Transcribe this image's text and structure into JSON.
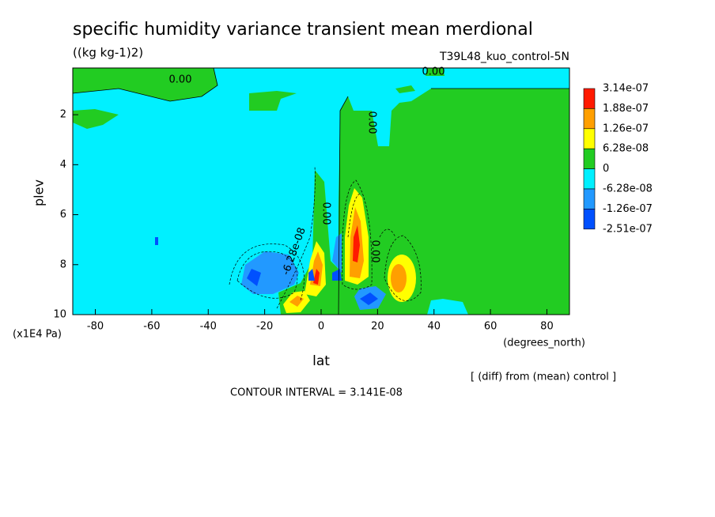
{
  "chart_data": {
    "type": "contour",
    "title": "specific humidity variance transient mean merdional",
    "subtitle": "((kg kg-1)2)",
    "dataset": "T39L48_kuo_control-5N",
    "x_label": "lat",
    "x_units": "(degrees_north)",
    "y_label": "plev",
    "y_units": "(x1E4 Pa)",
    "note": "[ (diff) from (mean) control ]",
    "contour_interval": "CONTOUR INTERVAL = 3.141E-08",
    "xlim": [
      -88,
      88
    ],
    "xticks": [
      -80,
      -60,
      -40,
      -20,
      0,
      20,
      40,
      60,
      80
    ],
    "ylim": [
      10,
      0.13
    ],
    "yticks": [
      2,
      4,
      6,
      8,
      10
    ],
    "levels": [
      {
        "value": 3.14e-07,
        "label": "3.14e-07"
      },
      {
        "value": 1.88e-07,
        "label": "1.88e-07"
      },
      {
        "value": 1.26e-07,
        "label": "1.26e-07"
      },
      {
        "value": 6.28e-08,
        "label": "6.28e-08"
      },
      0,
      {
        "value": -6.28e-08,
        "label": "-6.28e-08"
      },
      {
        "value": -1.26e-07,
        "label": "-1.26e-07"
      },
      {
        "value": -2.51e-07,
        "label": "-2.51e-07"
      }
    ],
    "colors": [
      "#ff1a00",
      "#ff9f00",
      "#ffff00",
      "#22cc22",
      "#00f0ff",
      "#2299ff",
      "#0050ff"
    ],
    "contour_labels": [
      "0.00",
      "0.00",
      "0.00",
      "0.00",
      "0.00",
      "-6.28e-08"
    ]
  }
}
